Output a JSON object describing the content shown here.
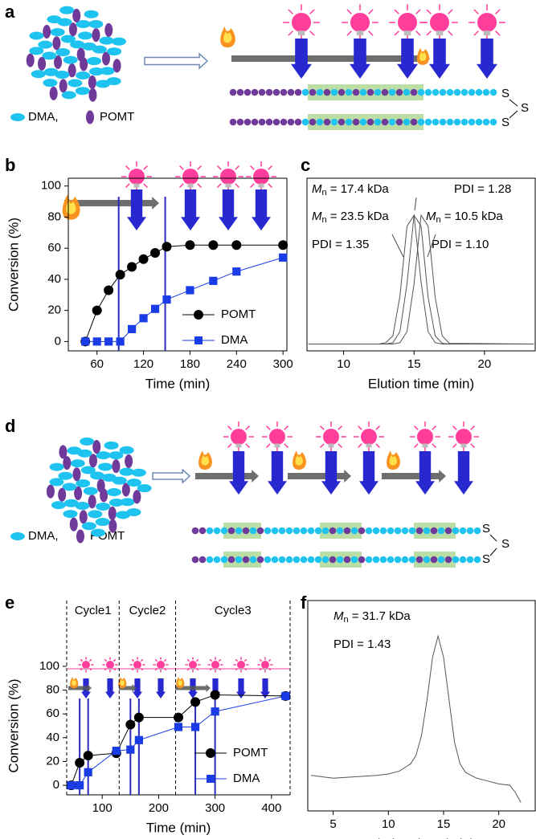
{
  "panel_labels": [
    "a",
    "b",
    "c",
    "d",
    "e",
    "f"
  ],
  "diagram_a": {
    "legend": [
      "DMA,",
      "POMT"
    ],
    "end_group": [
      "S",
      "S",
      "S"
    ]
  },
  "diagram_d": {
    "legend": [
      "DMA,",
      "POMT"
    ],
    "end_group": [
      "S",
      "S",
      "S"
    ]
  },
  "chart_data": [
    {
      "type": "line",
      "xlabel": "Time (min)",
      "ylabel": "Conversion (%)",
      "x": [
        45,
        60,
        75,
        90,
        105,
        120,
        135,
        150,
        180,
        210,
        240,
        300
      ],
      "series": [
        {
          "name": "POMT",
          "color": "#000000",
          "marker": "circle",
          "values": [
            0,
            20,
            33,
            43,
            48,
            53,
            57,
            61,
            62,
            62,
            62,
            62
          ]
        },
        {
          "name": "DMA",
          "color": "#1a3ce6",
          "marker": "square",
          "values": [
            0,
            0,
            0,
            0,
            8,
            15,
            21,
            27,
            33,
            39,
            45,
            54
          ]
        }
      ],
      "xlim": [
        23,
        305
      ],
      "ylim": [
        -6,
        105
      ],
      "xticks": [
        60,
        120,
        180,
        240,
        300
      ],
      "yticks": [
        0,
        20,
        40,
        60,
        80,
        100
      ],
      "vlines": [
        88,
        148
      ],
      "vline_color": "#2b2bb8"
    },
    {
      "type": "line",
      "xlabel": "Elution time (min)",
      "x": [
        7.5,
        12.5,
        13,
        13.5,
        14,
        14.5,
        15,
        15.5,
        16,
        16.5,
        17,
        17.5,
        23.5
      ],
      "series": [
        {
          "color": "#555555",
          "values": [
            0,
            0,
            0.01,
            0.06,
            0.35,
            0.86,
            0.94,
            0.45,
            0.09,
            0.01,
            0,
            0,
            0
          ]
        },
        {
          "color": "#555555",
          "values": [
            0,
            0,
            0,
            0.01,
            0.09,
            0.44,
            0.94,
            0.86,
            0.34,
            0.06,
            0.005,
            0,
            0
          ]
        },
        {
          "color": "#555555",
          "values": [
            0,
            0,
            0,
            0,
            0.01,
            0.09,
            0.44,
            0.94,
            0.86,
            0.34,
            0.06,
            0.005,
            0
          ]
        }
      ],
      "xlim": [
        7.4,
        23.6
      ],
      "ylim": [
        -0.05,
        1.21
      ],
      "xticks": [
        10,
        15,
        20
      ],
      "annotations": [
        {
          "symbol": "M",
          "sub": "n",
          "text": " = 17.4 kDa"
        },
        {
          "text": "PDI = 1.28"
        },
        {
          "symbol": "M",
          "sub": "n",
          "text": " = 23.5 kDa"
        },
        {
          "symbol": "M",
          "sub": "n",
          "text": " = 10.5 kDa"
        },
        {
          "text": "PDI = 1.35"
        },
        {
          "text": "PDI = 1.10"
        }
      ]
    },
    {
      "type": "line",
      "xlabel": "Time (min)",
      "ylabel": "Conversion (%)",
      "x": [
        45,
        60,
        75,
        125,
        150,
        165,
        235,
        265,
        300,
        425
      ],
      "series": [
        {
          "name": "POMT",
          "color": "#000000",
          "marker": "circle",
          "values": [
            0,
            19,
            25,
            27,
            51,
            57,
            57,
            70,
            76,
            75
          ]
        },
        {
          "name": "DMA",
          "color": "#1a3ce6",
          "marker": "square",
          "values": [
            0,
            0,
            11,
            29,
            30,
            38,
            49,
            49,
            62,
            75
          ]
        }
      ],
      "xlim": [
        37,
        433
      ],
      "ylim": [
        -8,
        108
      ],
      "xticks": [
        100,
        200,
        300,
        400
      ],
      "yticks": [
        0,
        20,
        40,
        60,
        80,
        100
      ],
      "vlines": [
        60,
        75,
        150,
        165,
        265,
        300
      ],
      "vline_color": "#2b2bb8",
      "dividers": [
        130,
        230
      ],
      "cycles": [
        "Cycle1",
        "Cycle2",
        "Cycle3"
      ]
    },
    {
      "type": "line",
      "xlabel": "Elution time (min)",
      "x": [
        3,
        5,
        7,
        9,
        10,
        11,
        12,
        12.5,
        13,
        13.5,
        14,
        14.5,
        15,
        15.5,
        16,
        16.5,
        17,
        18,
        19,
        20,
        21,
        21.5,
        22
      ],
      "series": [
        {
          "color": "#555555",
          "values": [
            0.02,
            0,
            0.01,
            0.02,
            0.03,
            0.05,
            0.1,
            0.16,
            0.3,
            0.55,
            0.85,
            1,
            0.85,
            0.55,
            0.25,
            0.1,
            0.04,
            0,
            -0.02,
            -0.04,
            -0.05,
            -0.1,
            -0.17
          ]
        }
      ],
      "xlim": [
        2.7,
        23.3
      ],
      "ylim": [
        -0.23,
        1.25
      ],
      "xticks": [
        5,
        10,
        15,
        20
      ],
      "annotations": [
        {
          "symbol": "M",
          "sub": "n",
          "text": " = 31.7 kDa"
        },
        {
          "text": "PDI = 1.43"
        }
      ]
    }
  ]
}
